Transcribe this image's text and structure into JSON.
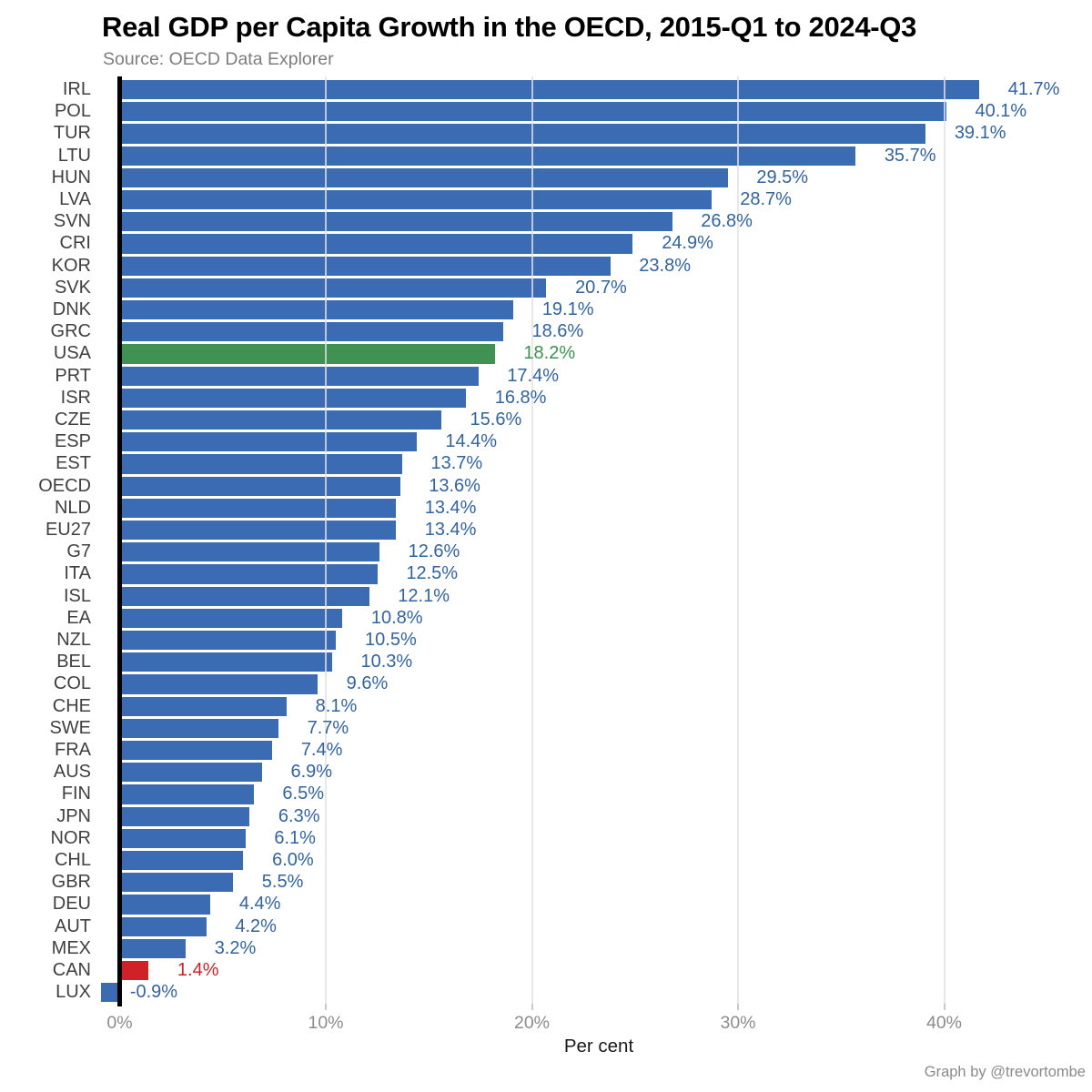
{
  "header": {
    "title": "Real GDP per Capita Growth in the OECD, 2015-Q1 to 2024-Q3",
    "source": "Source: OECD Data Explorer"
  },
  "footer": {
    "credit": "Graph by @trevortombe"
  },
  "axis": {
    "xlabel": "Per cent",
    "tick_values": [
      0,
      10,
      20,
      30,
      40
    ],
    "tick_labels": [
      "0%",
      "10%",
      "20%",
      "30%",
      "40%"
    ]
  },
  "colors": {
    "bar_default": "#3b6bb3",
    "value_label_default": "#33639c",
    "axis_line": "#000000",
    "gridline": "#e6e6e6",
    "tick": "#c9c9c9",
    "category_label": "#404040",
    "highlights": {
      "USA": {
        "bar": "#3f9251",
        "label": "#3d9150"
      },
      "CAN": {
        "bar": "#cf2127",
        "label": "#c62128"
      }
    }
  },
  "chart_data": {
    "type": "bar",
    "orientation": "horizontal",
    "title": "Real GDP per Capita Growth in the OECD, 2015-Q1 to 2024-Q3",
    "source": "OECD Data Explorer",
    "xlabel": "Per cent",
    "xlim": [
      -2,
      46
    ],
    "xticks": [
      0,
      10,
      20,
      30,
      40
    ],
    "grid": "vertical-only",
    "legend": "none",
    "categories": [
      "IRL",
      "POL",
      "TUR",
      "LTU",
      "HUN",
      "LVA",
      "SVN",
      "CRI",
      "KOR",
      "SVK",
      "DNK",
      "GRC",
      "USA",
      "PRT",
      "ISR",
      "CZE",
      "ESP",
      "EST",
      "OECD",
      "NLD",
      "EU27",
      "G7",
      "ITA",
      "ISL",
      "EA",
      "NZL",
      "BEL",
      "COL",
      "CHE",
      "SWE",
      "FRA",
      "AUS",
      "FIN",
      "JPN",
      "NOR",
      "CHL",
      "GBR",
      "DEU",
      "AUT",
      "MEX",
      "CAN",
      "LUX"
    ],
    "values": [
      41.7,
      40.1,
      39.1,
      35.7,
      29.5,
      28.7,
      26.8,
      24.9,
      23.8,
      20.7,
      19.1,
      18.6,
      18.2,
      17.4,
      16.8,
      15.6,
      14.4,
      13.7,
      13.6,
      13.4,
      13.4,
      12.6,
      12.5,
      12.1,
      10.8,
      10.5,
      10.3,
      9.6,
      8.1,
      7.7,
      7.4,
      6.9,
      6.5,
      6.3,
      6.1,
      6.0,
      5.5,
      4.4,
      4.2,
      3.2,
      1.4,
      -0.9
    ],
    "value_labels": [
      "41.7%",
      "40.1%",
      "39.1%",
      "35.7%",
      "29.5%",
      "28.7%",
      "26.8%",
      "24.9%",
      "23.8%",
      "20.7%",
      "19.1%",
      "18.6%",
      "18.2%",
      "17.4%",
      "16.8%",
      "15.6%",
      "14.4%",
      "13.7%",
      "13.6%",
      "13.4%",
      "13.4%",
      "12.6%",
      "12.5%",
      "12.1%",
      "10.8%",
      "10.5%",
      "10.3%",
      "9.6%",
      "8.1%",
      "7.7%",
      "7.4%",
      "6.9%",
      "6.5%",
      "6.3%",
      "6.1%",
      "6.0%",
      "5.5%",
      "4.4%",
      "4.2%",
      "3.2%",
      "1.4%",
      "-0.9%"
    ],
    "highlighted_bars": {
      "USA": "green",
      "CAN": "red"
    }
  }
}
